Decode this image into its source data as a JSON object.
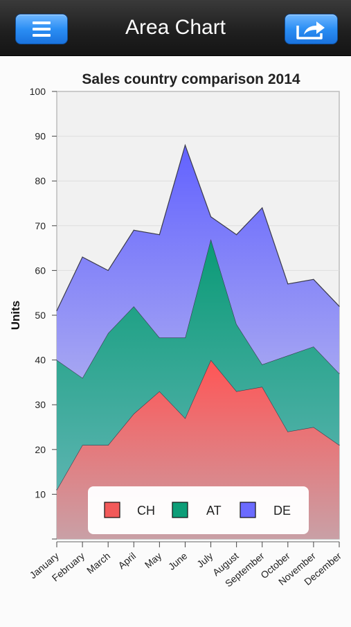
{
  "navbar": {
    "title": "Area Chart",
    "menu_icon": "menu-icon",
    "share_icon": "share-icon"
  },
  "chart_data": {
    "type": "area",
    "stacked": true,
    "title": "Sales country comparison 2014",
    "xlabel": "",
    "ylabel": "Units",
    "ylim": [
      0,
      100
    ],
    "yticks": [
      "10",
      "20",
      "30",
      "40",
      "50",
      "60",
      "70",
      "80",
      "90",
      "100"
    ],
    "grid": true,
    "legend_position": "bottom-inside",
    "categories": [
      "January",
      "February",
      "March",
      "April",
      "May",
      "June",
      "July",
      "August",
      "September",
      "October",
      "November",
      "December"
    ],
    "series": [
      {
        "name": "CH",
        "color": "#f25a5a",
        "values": [
          11,
          21,
          21,
          28,
          33,
          27,
          40,
          33,
          34,
          24,
          25,
          21
        ]
      },
      {
        "name": "AT",
        "color": "#0d9e78",
        "values": [
          29,
          15,
          25,
          24,
          12,
          18,
          27,
          15,
          5,
          17,
          18,
          16
        ]
      },
      {
        "name": "DE",
        "color": "#6b6bff",
        "values": [
          11,
          27,
          14,
          17,
          23,
          43,
          5,
          20,
          35,
          16,
          15,
          15
        ]
      }
    ]
  }
}
